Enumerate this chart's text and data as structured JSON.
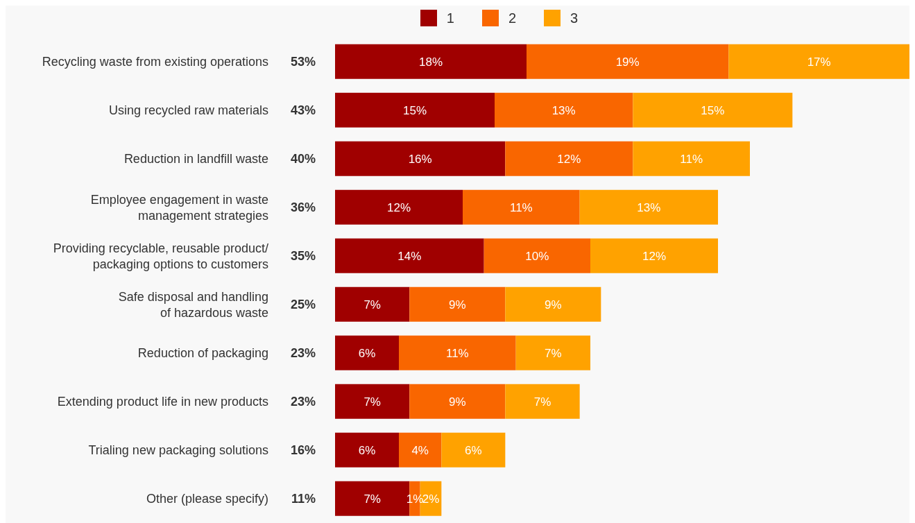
{
  "chart_data": {
    "type": "bar",
    "orientation": "horizontal",
    "stacked": true,
    "legend": "top",
    "grid": false,
    "categories": [
      "Recycling waste from existing operations",
      "Using recycled raw materials",
      "Reduction in landfill waste",
      "Employee engagement in waste management strategies",
      "Providing recyclable, reusable product/ packaging options to customers",
      "Safe disposal and handling of hazardous waste",
      "Reduction of packaging",
      "Extending product life in new products",
      "Trialing new packaging solutions",
      "Other (please specify)"
    ],
    "totals": [
      "53%",
      "43%",
      "40%",
      "36%",
      "35%",
      "25%",
      "23%",
      "23%",
      "16%",
      "11%"
    ],
    "series": [
      {
        "name": "1",
        "color": "#a00000",
        "values": [
          18,
          15,
          16,
          12,
          14,
          7,
          6,
          7,
          6,
          7
        ],
        "value_labels": [
          "18%",
          "15%",
          "16%",
          "12%",
          "14%",
          "7%",
          "6%",
          "7%",
          "6%",
          "7%"
        ]
      },
      {
        "name": "2",
        "color": "#f96600",
        "values": [
          19,
          13,
          12,
          11,
          10,
          9,
          11,
          9,
          4,
          1
        ],
        "value_labels": [
          "19%",
          "13%",
          "12%",
          "11%",
          "10%",
          "9%",
          "11%",
          "9%",
          "4%",
          "1%"
        ]
      },
      {
        "name": "3",
        "color": "#ffa200",
        "values": [
          17,
          15,
          11,
          13,
          12,
          9,
          7,
          7,
          6,
          2
        ],
        "value_labels": [
          "17%",
          "15%",
          "11%",
          "13%",
          "12%",
          "9%",
          "7%",
          "7%",
          "6%",
          "2%"
        ]
      }
    ]
  }
}
